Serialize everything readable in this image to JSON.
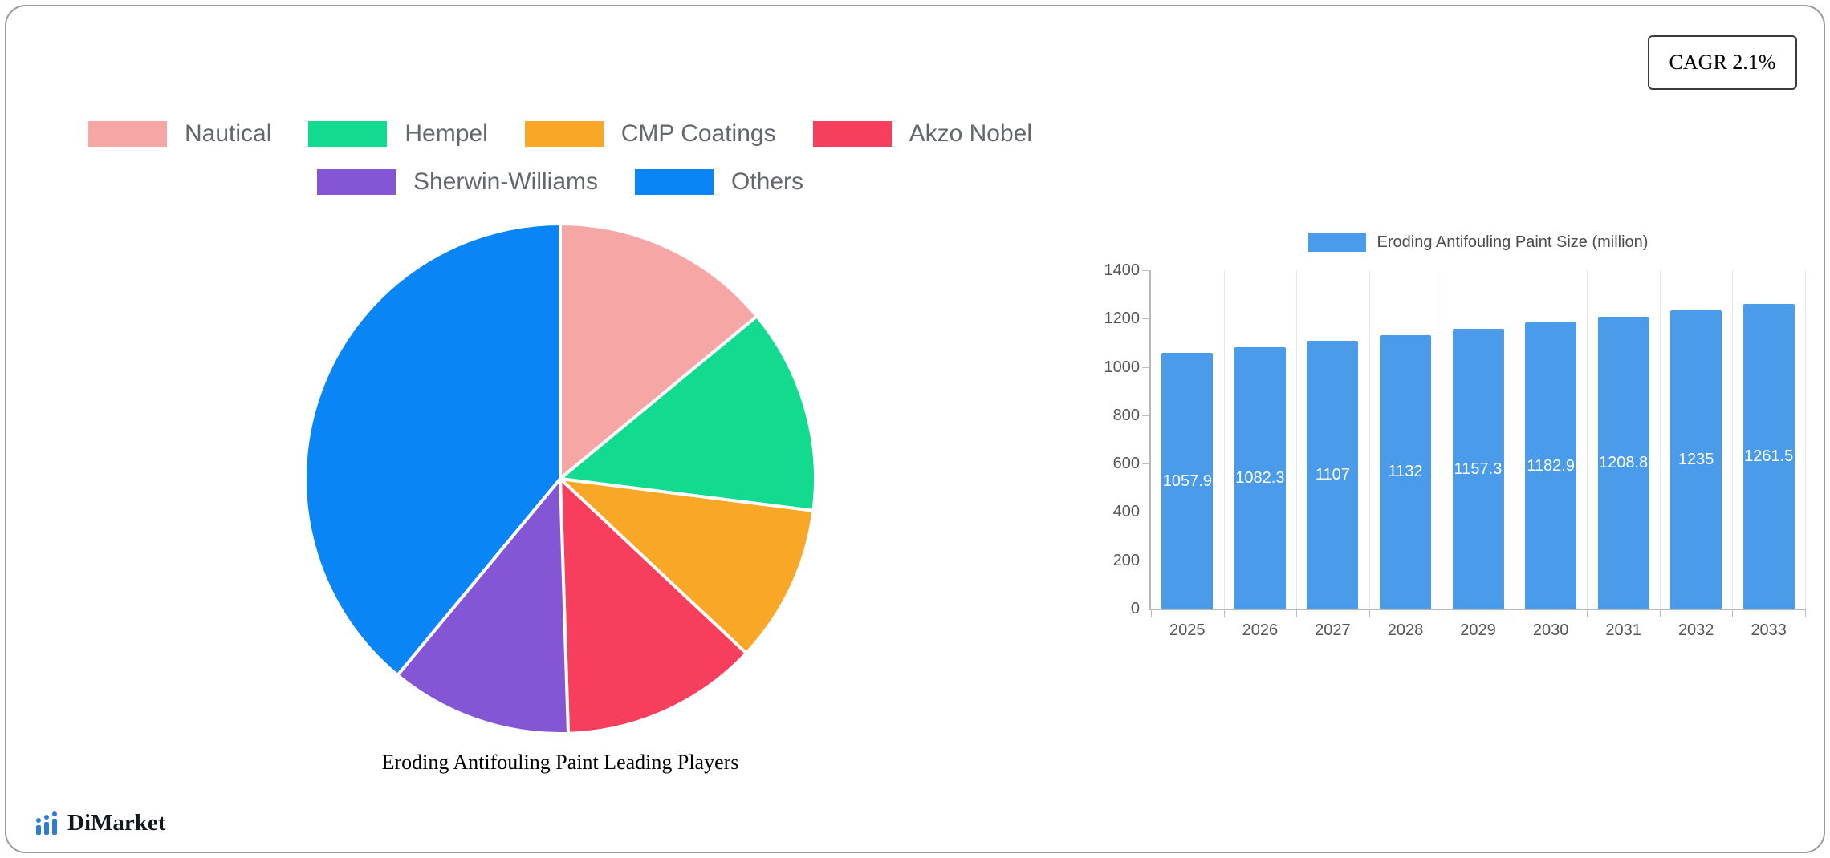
{
  "header": {
    "cagr_badge": "CAGR 2.1%"
  },
  "footer": {
    "brand": "DiMarket"
  },
  "chart_data": [
    {
      "type": "pie",
      "title": "Eroding Antifouling Paint Leading Players",
      "labels": [
        "Nautical",
        "Hempel",
        "CMP Coatings",
        "Akzo Nobel",
        "Sherwin-Williams",
        "Others"
      ],
      "values": [
        14,
        13,
        10,
        12.5,
        11.5,
        39
      ],
      "colors": [
        "#F7A6A6",
        "#12DB90",
        "#F8A826",
        "#F73E5D",
        "#8456D6",
        "#0A85F6"
      ],
      "legend_position": "top",
      "legend_row_split": 4
    },
    {
      "type": "bar",
      "legend_label": "Eroding Antifouling Paint Size (million)",
      "categories": [
        "2025",
        "2026",
        "2027",
        "2028",
        "2029",
        "2030",
        "2031",
        "2032",
        "2033"
      ],
      "values": [
        1057.9,
        1082.3,
        1107,
        1132,
        1157.3,
        1182.9,
        1208.8,
        1235,
        1261.5
      ],
      "value_labels": [
        "1057.9",
        "1082.3",
        "1107",
        "1132",
        "1157.3",
        "1182.9",
        "1208.8",
        "1235",
        "1261.5"
      ],
      "ylim": [
        0,
        1400
      ],
      "yticks": [
        0,
        200,
        400,
        600,
        800,
        1000,
        1200,
        1400
      ],
      "bar_color": "#4A9BEA",
      "grid": "vertical",
      "legend_position": "top"
    }
  ]
}
